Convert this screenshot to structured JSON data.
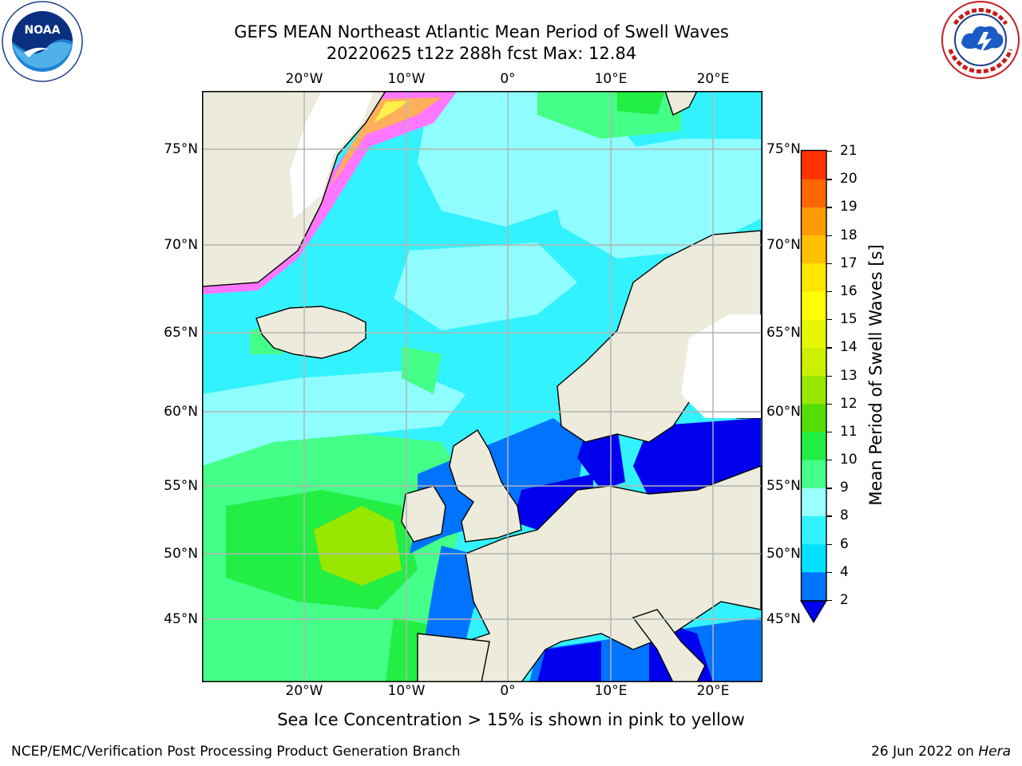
{
  "header": {
    "title_line1": "GEFS MEAN Northeast Atlantic Mean Period of Swell Waves",
    "title_line2": "20220625 t12z 288h fcst   Max: 12.84"
  },
  "logos": {
    "left": {
      "name": "noaa-logo",
      "text": "NOAA",
      "ring_text": "NATIONAL OCEANIC AND ATMOSPHERIC ADMINISTRATION · U.S. DEPARTMENT OF COMMERCE"
    },
    "right": {
      "name": "nws-logo",
      "ring_text": "NATIONAL WEATHER SERVICE"
    }
  },
  "map": {
    "lon_ticks": [
      "20°W",
      "10°W",
      "0°",
      "10°E",
      "20°E"
    ],
    "lat_ticks": [
      "75°N",
      "70°N",
      "65°N",
      "60°N",
      "55°N",
      "50°N",
      "45°N"
    ],
    "lon_range": [
      -30,
      24
    ],
    "lat_range": [
      41,
      78
    ],
    "grid": true,
    "colors": {
      "land": "#ecebdc",
      "coast": "#000000",
      "grid": "#b4b4b4",
      "ice": [
        "#ff77ff",
        "#ffb05a",
        "#fff04a"
      ]
    }
  },
  "colorbar": {
    "label": "Mean Period of Swell Waves [s]",
    "ticks": [
      "2",
      "4",
      "6",
      "8",
      "9",
      "10",
      "11",
      "12",
      "13",
      "14",
      "15",
      "16",
      "17",
      "18",
      "19",
      "20",
      "21"
    ],
    "colors": [
      "#0073ff",
      "#00e1ff",
      "#33f2ff",
      "#99ffff",
      "#44ff88",
      "#22ee44",
      "#55dd00",
      "#99e600",
      "#ccf000",
      "#e6f500",
      "#ffff00",
      "#ffe600",
      "#ffc000",
      "#ff9900",
      "#ff6600",
      "#ff3300"
    ],
    "extend_below_color": "#0000ee"
  },
  "note": "Sea Ice Concentration > 15% is shown in pink to yellow",
  "footer": {
    "left": "NCEP/EMC/Verification Post Processing Product Generation Branch",
    "date": "26 Jun 2022 on ",
    "machine": "Hera"
  }
}
